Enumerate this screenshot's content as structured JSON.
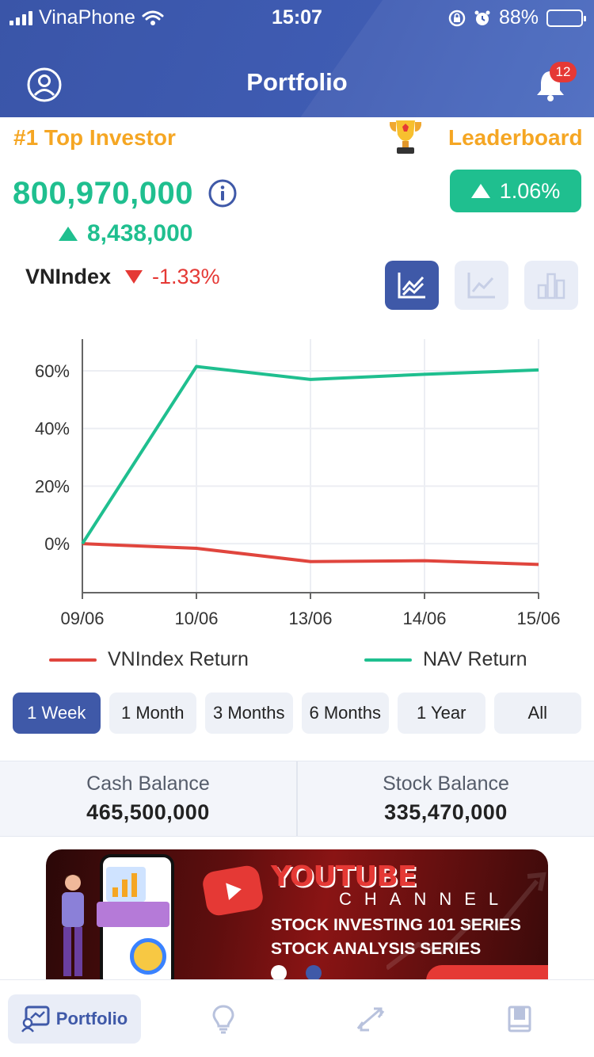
{
  "status_bar": {
    "carrier": "VinaPhone",
    "time": "15:07",
    "battery": "88%",
    "battery_level": 0.88
  },
  "header": {
    "title": "Portfolio",
    "notification_count": "12"
  },
  "summary": {
    "rank_label": "#1 Top Investor",
    "leaderboard_label": "Leaderboard",
    "nav_value": "800,970,000",
    "change_pct": "1.06%",
    "change_value": "8,438,000",
    "index_name": "VNIndex",
    "index_change": "-1.33%"
  },
  "chart_data": {
    "type": "line",
    "x": [
      "09/06",
      "10/06",
      "13/06",
      "14/06",
      "15/06"
    ],
    "yticks": [
      "60%",
      "40%",
      "20%",
      "0%"
    ],
    "ylim": [
      -17,
      71
    ],
    "series": [
      {
        "name": "VNIndex Return",
        "color": "#e0453d",
        "values": [
          0,
          -1.6,
          -6.2,
          -5.9,
          -7.2
        ]
      },
      {
        "name": "NAV Return",
        "color": "#1fbf8f",
        "values": [
          0,
          61.5,
          57,
          58.8,
          60.3
        ]
      }
    ],
    "grid": true
  },
  "legend": {
    "vnindex": "VNIndex Return",
    "nav": "NAV Return"
  },
  "periods": [
    "1 Week",
    "1 Month",
    "3 Months",
    "6 Months",
    "1 Year",
    "All"
  ],
  "balances": {
    "cash_label": "Cash Balance",
    "cash_value": "465,500,000",
    "stock_label": "Stock Balance",
    "stock_value": "335,470,000"
  },
  "banner": {
    "title": "YOUTUBE",
    "subtitle": "CHANNEL",
    "line1": "STOCK INVESTING 101 SERIES",
    "line2": "STOCK ANALYSIS SERIES"
  },
  "tabbar": {
    "portfolio_label": "Portfolio",
    "icons": [
      "portfolio-icon",
      "lightbulb-icon",
      "trade-icon",
      "book-icon"
    ]
  },
  "colors": {
    "primary": "#3f59a8",
    "positive": "#1fbf8f",
    "negative": "#e53935",
    "gold": "#f5a623"
  }
}
